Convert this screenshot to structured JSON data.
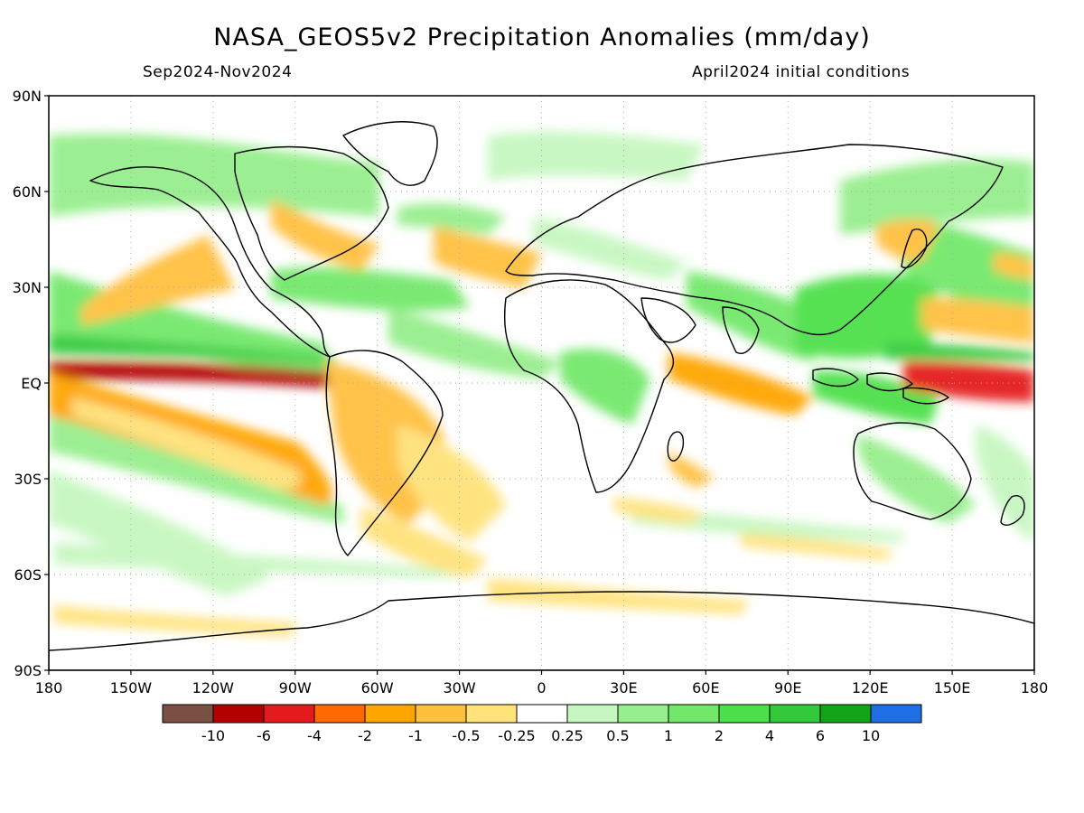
{
  "map": {
    "title": "NASA_GEOS5v2 Precipitation Anomalies (mm/day)",
    "period": "Sep2024-Nov2024",
    "init": "April2024 initial conditions",
    "lat_labels": [
      "90N",
      "60N",
      "30N",
      "EQ",
      "30S",
      "60S",
      "90S"
    ],
    "lat_values": [
      90,
      60,
      30,
      0,
      -30,
      -60,
      -90
    ],
    "lon_labels": [
      "180",
      "150W",
      "120W",
      "90W",
      "60W",
      "30W",
      "0",
      "30E",
      "60E",
      "90E",
      "120E",
      "150E",
      "180"
    ],
    "lon_values": [
      -180,
      -150,
      -120,
      -90,
      -60,
      -30,
      0,
      30,
      60,
      90,
      120,
      150,
      180
    ]
  },
  "legend": {
    "colors": [
      "#7a5043",
      "#b30000",
      "#e41a1c",
      "#ff6a00",
      "#ffa500",
      "#ffc040",
      "#ffe27a",
      "#ffffff",
      "#c6f7c0",
      "#96ee8c",
      "#72e86a",
      "#4de04a",
      "#33c93a",
      "#12a317",
      "#1e6fe6"
    ],
    "labels": [
      "-10",
      "-6",
      "-4",
      "-2",
      "-1",
      "-0.5",
      "-0.25",
      "0.25",
      "0.5",
      "1",
      "2",
      "4",
      "6",
      "10"
    ]
  }
}
